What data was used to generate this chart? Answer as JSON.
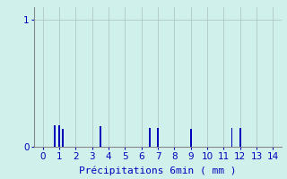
{
  "xlabel": "Précipitations 6min ( mm )",
  "xlim": [
    -0.5,
    14.5
  ],
  "ylim": [
    0,
    1.1
  ],
  "yticks": [
    0,
    1
  ],
  "xticks": [
    0,
    1,
    2,
    3,
    4,
    5,
    6,
    7,
    8,
    9,
    10,
    11,
    12,
    13,
    14
  ],
  "bar_positions": [
    0.75,
    1.0,
    1.2,
    3.5,
    6.5,
    7.0,
    9.0,
    11.5,
    12.0
  ],
  "bar_heights": [
    0.17,
    0.17,
    0.14,
    0.16,
    0.15,
    0.15,
    0.14,
    0.15,
    0.15
  ],
  "bar_color": "#0000bb",
  "bar_width": 0.1,
  "background_color": "#d0f0ec",
  "grid_color": "#b0c8c8",
  "axis_color": "#888888",
  "text_color": "#0000bb",
  "font_size": 7.5,
  "xlabel_fontsize": 8
}
